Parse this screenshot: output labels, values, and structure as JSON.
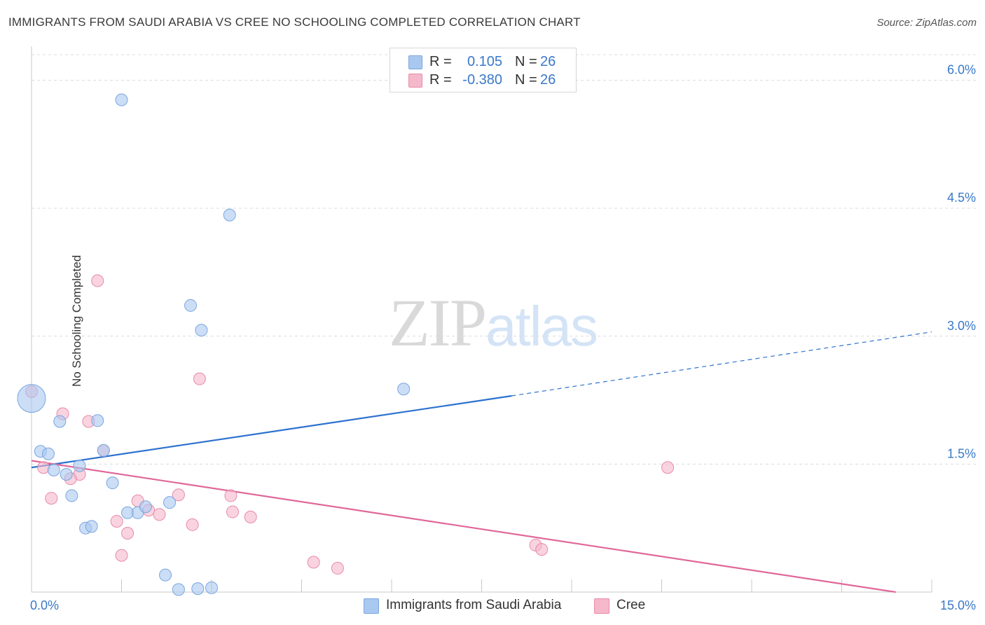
{
  "header": {
    "title": "IMMIGRANTS FROM SAUDI ARABIA VS CREE NO SCHOOLING COMPLETED CORRELATION CHART",
    "source": "Source: ZipAtlas.com"
  },
  "watermark": {
    "zip": "ZIP",
    "atlas": "atlas"
  },
  "legend": {
    "rows": [
      {
        "r_label": "R =",
        "r_value": "0.105",
        "n_label": "N =",
        "n_value": "26",
        "color": "#a9c8f0"
      },
      {
        "r_label": "R =",
        "r_value": "-0.380",
        "n_label": "N =",
        "n_value": "26",
        "color": "#f5b8cb"
      }
    ]
  },
  "bottom_legend": [
    {
      "label": "Immigrants from Saudi Arabia",
      "color": "#a9c8f0"
    },
    {
      "label": "Cree",
      "color": "#f5b8cb"
    }
  ],
  "colors": {
    "blue_fill": "#a9c8f0",
    "blue_stroke": "#7aa6de",
    "blue_line": "#2d72cf",
    "pink_fill": "#f5b8cb",
    "pink_stroke": "#e88aa8",
    "pink_line": "#e0679a",
    "grid": "#dcdcdc",
    "tick_label": "#3a78c9"
  },
  "chart_data": {
    "type": "scatter",
    "title": "IMMIGRANTS FROM SAUDI ARABIA VS CREE NO SCHOOLING COMPLETED CORRELATION CHART",
    "xlabel": "",
    "ylabel": "No Schooling Completed",
    "xlim": [
      0,
      15
    ],
    "ylim": [
      0,
      6.3
    ],
    "x_tick_labels": [
      {
        "value": 0,
        "label": "0.0%"
      },
      {
        "value": 15,
        "label": "15.0%"
      }
    ],
    "y_tick_labels": [
      {
        "value": 1.5,
        "label": "1.5%"
      },
      {
        "value": 3.0,
        "label": "3.0%"
      },
      {
        "value": 4.5,
        "label": "4.5%"
      },
      {
        "value": 6.0,
        "label": "6.0%"
      }
    ],
    "grid": true,
    "legend_position": "top-center",
    "series": [
      {
        "name": "Immigrants from Saudi Arabia",
        "color": "#a9c8f0",
        "points": [
          {
            "x": 0.0,
            "y": 2.27,
            "large": true
          },
          {
            "x": 1.5,
            "y": 5.77
          },
          {
            "x": 3.3,
            "y": 4.42
          },
          {
            "x": 2.65,
            "y": 3.36
          },
          {
            "x": 2.83,
            "y": 3.07
          },
          {
            "x": 6.2,
            "y": 2.38
          },
          {
            "x": 0.47,
            "y": 2.0
          },
          {
            "x": 1.1,
            "y": 2.01
          },
          {
            "x": 0.15,
            "y": 1.65
          },
          {
            "x": 0.28,
            "y": 1.62
          },
          {
            "x": 1.2,
            "y": 1.66
          },
          {
            "x": 0.37,
            "y": 1.43
          },
          {
            "x": 0.58,
            "y": 1.38
          },
          {
            "x": 0.8,
            "y": 1.48
          },
          {
            "x": 1.35,
            "y": 1.28
          },
          {
            "x": 0.67,
            "y": 1.13
          },
          {
            "x": 1.6,
            "y": 0.93
          },
          {
            "x": 1.77,
            "y": 0.93
          },
          {
            "x": 1.9,
            "y": 1.0
          },
          {
            "x": 2.3,
            "y": 1.05
          },
          {
            "x": 0.9,
            "y": 0.75
          },
          {
            "x": 1.0,
            "y": 0.77
          },
          {
            "x": 2.23,
            "y": 0.2
          },
          {
            "x": 2.45,
            "y": 0.03
          },
          {
            "x": 2.77,
            "y": 0.04
          },
          {
            "x": 3.0,
            "y": 0.05
          }
        ],
        "trend": {
          "x0": 0,
          "y0": 1.46,
          "x1_solid": 8.0,
          "y1_solid": 2.3,
          "x1": 15.0,
          "y1": 3.05
        }
      },
      {
        "name": "Cree",
        "color": "#f5b8cb",
        "points": [
          {
            "x": 0.0,
            "y": 2.35
          },
          {
            "x": 1.1,
            "y": 3.65
          },
          {
            "x": 2.8,
            "y": 2.5
          },
          {
            "x": 0.52,
            "y": 2.09
          },
          {
            "x": 0.95,
            "y": 2.0
          },
          {
            "x": 1.2,
            "y": 1.66
          },
          {
            "x": 0.2,
            "y": 1.46
          },
          {
            "x": 0.8,
            "y": 1.38
          },
          {
            "x": 0.65,
            "y": 1.33
          },
          {
            "x": 0.33,
            "y": 1.1
          },
          {
            "x": 2.45,
            "y": 1.14
          },
          {
            "x": 3.32,
            "y": 1.13
          },
          {
            "x": 1.77,
            "y": 1.07
          },
          {
            "x": 1.95,
            "y": 0.96
          },
          {
            "x": 2.13,
            "y": 0.91
          },
          {
            "x": 3.35,
            "y": 0.94
          },
          {
            "x": 3.65,
            "y": 0.88
          },
          {
            "x": 1.42,
            "y": 0.83
          },
          {
            "x": 2.68,
            "y": 0.79
          },
          {
            "x": 1.6,
            "y": 0.69
          },
          {
            "x": 10.6,
            "y": 1.46
          },
          {
            "x": 8.4,
            "y": 0.55
          },
          {
            "x": 8.5,
            "y": 0.5
          },
          {
            "x": 1.5,
            "y": 0.43
          },
          {
            "x": 4.7,
            "y": 0.35
          },
          {
            "x": 5.1,
            "y": 0.28
          }
        ],
        "trend": {
          "x0": 0,
          "y0": 1.54,
          "x1": 14.4,
          "y1": 0.0
        }
      }
    ]
  }
}
